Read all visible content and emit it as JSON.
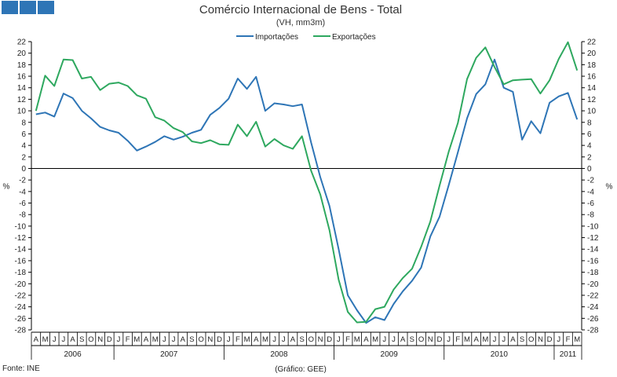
{
  "header": {
    "title": "Comércio Internacional de Bens - Total",
    "subtitle": "(VH, mm3m)"
  },
  "footer": {
    "source": "Fonte: INE",
    "credit": "(Gráfico: GEE)"
  },
  "chart_data": {
    "type": "line",
    "title": "Comércio Internacional de Bens - Total",
    "subtitle": "(VH, mm3m)",
    "ylabel_left": "%",
    "ylabel_right": "%",
    "ylim": [
      -28,
      22
    ],
    "y_ticks": [
      22,
      20,
      18,
      16,
      14,
      12,
      10,
      8,
      6,
      4,
      2,
      0,
      -2,
      -4,
      -6,
      -8,
      -10,
      -12,
      -14,
      -16,
      -18,
      -20,
      -22,
      -24,
      -26,
      -28
    ],
    "legend_position": "top-center",
    "grid": false,
    "x_months": [
      "A",
      "M",
      "J",
      "J",
      "A",
      "S",
      "O",
      "N",
      "D",
      "J",
      "F",
      "M",
      "A",
      "M",
      "J",
      "J",
      "A",
      "S",
      "O",
      "N",
      "D",
      "J",
      "F",
      "M",
      "A",
      "M",
      "J",
      "J",
      "A",
      "S",
      "O",
      "N",
      "D",
      "J",
      "F",
      "M",
      "A",
      "M",
      "J",
      "J",
      "A",
      "S",
      "O",
      "N",
      "D",
      "J",
      "F",
      "M",
      "A",
      "M",
      "J",
      "J",
      "A",
      "S",
      "O",
      "N",
      "D",
      "J",
      "F",
      "M"
    ],
    "x_years": [
      {
        "label": "2006",
        "months": 9
      },
      {
        "label": "2007",
        "months": 12
      },
      {
        "label": "2008",
        "months": 12
      },
      {
        "label": "2009",
        "months": 12
      },
      {
        "label": "2010",
        "months": 12
      },
      {
        "label": "2011",
        "months": 3
      }
    ],
    "series": [
      {
        "name": "Importações",
        "color": "#2e75b6",
        "values": [
          9.4,
          9.7,
          9.0,
          13.0,
          12.2,
          10.0,
          8.7,
          7.2,
          6.6,
          6.2,
          4.8,
          3.1,
          3.8,
          4.6,
          5.6,
          5.0,
          5.5,
          6.2,
          6.7,
          9.3,
          10.5,
          12.1,
          15.6,
          13.8,
          15.9,
          10.0,
          11.3,
          11.1,
          10.8,
          11.1,
          4.5,
          -1.5,
          -6.5,
          -14.0,
          -22.0,
          -24.6,
          -26.8,
          -25.8,
          -26.3,
          -23.5,
          -21.3,
          -19.5,
          -17.2,
          -11.8,
          -8.4,
          -2.9,
          2.8,
          8.7,
          12.9,
          14.6,
          18.9,
          14.0,
          13.3,
          5.0,
          8.2,
          6.1,
          11.4,
          12.5,
          13.1,
          8.5
        ]
      },
      {
        "name": "Exportações",
        "color": "#2ea85f",
        "values": [
          10.0,
          16.1,
          14.3,
          18.9,
          18.8,
          15.6,
          15.9,
          13.6,
          14.7,
          14.9,
          14.3,
          12.7,
          12.1,
          8.9,
          8.3,
          7.0,
          6.3,
          4.7,
          4.4,
          4.9,
          4.2,
          4.1,
          7.6,
          5.6,
          8.1,
          3.8,
          5.1,
          4.0,
          3.4,
          5.6,
          -0.4,
          -4.5,
          -10.7,
          -19.3,
          -24.9,
          -26.7,
          -26.6,
          -24.4,
          -24.0,
          -21.0,
          -19.0,
          -17.4,
          -13.6,
          -9.2,
          -3.0,
          2.9,
          7.9,
          15.5,
          19.2,
          21.0,
          17.6,
          14.6,
          15.3,
          15.4,
          15.5,
          13.0,
          15.3,
          19.0,
          21.9,
          17.0
        ]
      }
    ]
  }
}
